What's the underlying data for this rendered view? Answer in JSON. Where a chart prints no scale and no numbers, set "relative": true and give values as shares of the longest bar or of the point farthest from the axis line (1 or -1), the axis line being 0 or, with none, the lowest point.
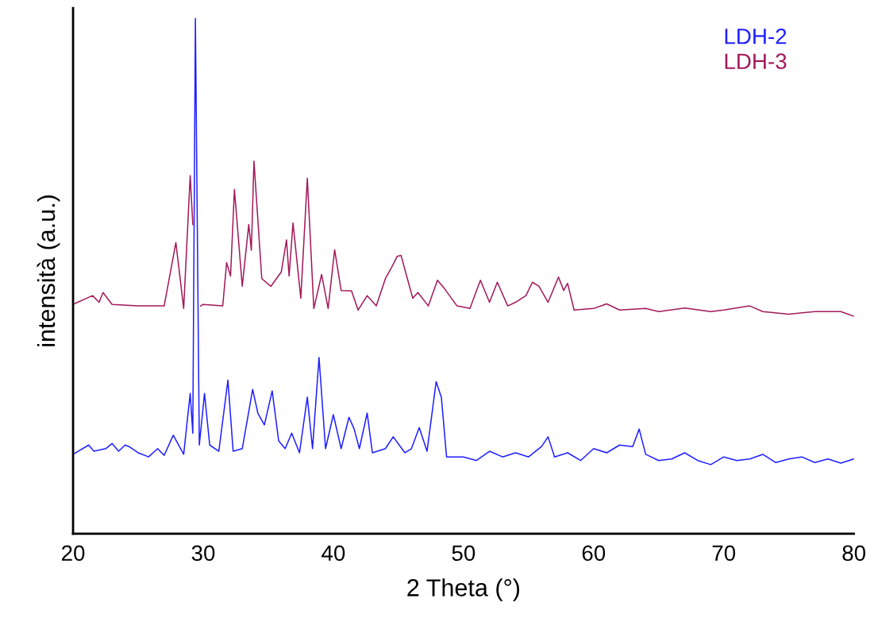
{
  "chart_data": {
    "type": "line",
    "xlabel": "2 Theta (°)",
    "ylabel": "intensità (a.u.)",
    "relative": true,
    "xlim": [
      20,
      80
    ],
    "xticks": [
      20,
      30,
      40,
      50,
      60,
      70,
      80
    ],
    "tick_labels": "x",
    "grid": false,
    "legend": "top right",
    "marker": "none",
    "line_style": "solid",
    "series": [
      {
        "name": "LDH-2",
        "color": "#1f1fff",
        "x": [
          20,
          21.2,
          21.6,
          22.5,
          23,
          23.5,
          24,
          24.3,
          25,
          25.8,
          26.5,
          27,
          27.7,
          28.5,
          29,
          29.2,
          29.4,
          29.7,
          30.1,
          30.5,
          31.2,
          31.9,
          32.3,
          33,
          33.8,
          34.2,
          34.7,
          35.3,
          35.8,
          36.3,
          36.8,
          37.4,
          38,
          38.4,
          38.9,
          39.4,
          40,
          40.6,
          41.2,
          41.6,
          42,
          42.6,
          43,
          44,
          44.6,
          45.5,
          46,
          46.6,
          47.2,
          47.9,
          48.3,
          48.7,
          50,
          51,
          52,
          53,
          54,
          55,
          56,
          56.5,
          57,
          58,
          59,
          60,
          61,
          62,
          63,
          63.5,
          64,
          65,
          66,
          67,
          68,
          69,
          70,
          71,
          72,
          73,
          74,
          75,
          76,
          77,
          78,
          79,
          80
        ],
        "values": [
          0.154,
          0.172,
          0.16,
          0.165,
          0.175,
          0.16,
          0.172,
          0.169,
          0.157,
          0.149,
          0.165,
          0.152,
          0.191,
          0.154,
          0.272,
          0.195,
          1.0,
          0.172,
          0.272,
          0.172,
          0.16,
          0.298,
          0.16,
          0.165,
          0.28,
          0.234,
          0.211,
          0.277,
          0.18,
          0.165,
          0.195,
          0.157,
          0.265,
          0.165,
          0.342,
          0.165,
          0.231,
          0.165,
          0.226,
          0.203,
          0.165,
          0.234,
          0.157,
          0.165,
          0.188,
          0.157,
          0.165,
          0.206,
          0.16,
          0.295,
          0.265,
          0.149,
          0.149,
          0.142,
          0.16,
          0.149,
          0.157,
          0.149,
          0.169,
          0.188,
          0.149,
          0.157,
          0.142,
          0.165,
          0.157,
          0.172,
          0.169,
          0.203,
          0.154,
          0.142,
          0.145,
          0.157,
          0.142,
          0.134,
          0.149,
          0.142,
          0.145,
          0.154,
          0.138,
          0.145,
          0.149,
          0.138,
          0.145,
          0.137,
          0.145
        ]
      },
      {
        "name": "LDH-3",
        "color": "#a3195b",
        "x": [
          20,
          21.5,
          22,
          22.3,
          23,
          25,
          27,
          27.9,
          28.5,
          29,
          29.2,
          29.4,
          29.8,
          30,
          31.5,
          31.8,
          32.1,
          32.4,
          33,
          33.5,
          33.7,
          33.9,
          34.5,
          35.2,
          36,
          36.4,
          36.6,
          36.9,
          37.5,
          38,
          38.5,
          39.1,
          39.6,
          40.1,
          40.6,
          41.4,
          41.9,
          42.6,
          43.3,
          44,
          44.5,
          44.9,
          45.2,
          45.6,
          46.1,
          46.5,
          47.3,
          48,
          48.5,
          49.5,
          50.5,
          51.3,
          52,
          52.6,
          53.4,
          54,
          54.8,
          55.3,
          55.8,
          56.5,
          57.3,
          57.7,
          58,
          58.5,
          60,
          61,
          62,
          64,
          65,
          67,
          69,
          70,
          72,
          73,
          75,
          77,
          79,
          80
        ],
        "values": [
          0.445,
          0.462,
          0.449,
          0.468,
          0.445,
          0.442,
          0.442,
          0.565,
          0.437,
          0.695,
          0.6,
          null,
          0.442,
          0.445,
          0.442,
          0.526,
          0.5,
          0.668,
          0.48,
          0.6,
          0.55,
          0.723,
          0.495,
          0.48,
          0.508,
          0.57,
          0.5,
          0.603,
          0.457,
          0.69,
          0.437,
          0.503,
          0.437,
          0.551,
          0.472,
          0.471,
          0.434,
          0.462,
          0.442,
          0.495,
          0.518,
          0.538,
          0.54,
          0.503,
          0.457,
          0.468,
          0.442,
          0.492,
          0.477,
          0.442,
          0.437,
          0.492,
          0.449,
          0.488,
          0.442,
          0.449,
          0.462,
          0.488,
          0.48,
          0.449,
          0.498,
          0.472,
          0.486,
          0.434,
          0.437,
          0.446,
          0.434,
          0.437,
          0.431,
          0.438,
          0.431,
          0.434,
          0.442,
          0.431,
          0.426,
          0.431,
          0.431,
          0.422
        ]
      }
    ]
  }
}
